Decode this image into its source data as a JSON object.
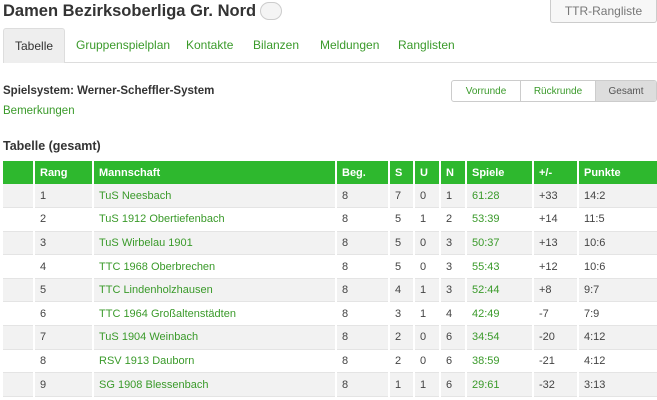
{
  "header": {
    "title": "Damen Bezirksoberliga Gr. Nord",
    "ttr_button": "TTR-Rangliste"
  },
  "tabs": [
    {
      "label": "Tabelle",
      "active": true
    },
    {
      "label": "Gruppenspielplan",
      "active": false
    },
    {
      "label": "Kontakte",
      "active": false
    },
    {
      "label": "Bilanzen",
      "active": false
    },
    {
      "label": "Meldungen",
      "active": false
    },
    {
      "label": "Ranglisten",
      "active": false
    }
  ],
  "info": {
    "system": "Spielsystem: Werner-Scheffler-System",
    "remarks": "Bemerkungen"
  },
  "round_selector": {
    "options": [
      "Vorrunde",
      "Rückrunde",
      "Gesamt"
    ],
    "selected": "Gesamt"
  },
  "table": {
    "heading": "Tabelle (gesamt)",
    "columns": [
      "",
      "Rang",
      "Mannschaft",
      "Beg.",
      "S",
      "U",
      "N",
      "Spiele",
      "+/-",
      "Punkte"
    ],
    "rows": [
      {
        "rang": "1",
        "team": "TuS Neesbach",
        "beg": "8",
        "s": "7",
        "u": "0",
        "n": "1",
        "spiele": "61:28",
        "diff": "+33",
        "punkte": "14:2"
      },
      {
        "rang": "2",
        "team": "TuS 1912 Obertiefenbach",
        "beg": "8",
        "s": "5",
        "u": "1",
        "n": "2",
        "spiele": "53:39",
        "diff": "+14",
        "punkte": "11:5"
      },
      {
        "rang": "3",
        "team": "TuS Wirbelau 1901",
        "beg": "8",
        "s": "5",
        "u": "0",
        "n": "3",
        "spiele": "50:37",
        "diff": "+13",
        "punkte": "10:6"
      },
      {
        "rang": "4",
        "team": "TTC 1968 Oberbrechen",
        "beg": "8",
        "s": "5",
        "u": "0",
        "n": "3",
        "spiele": "55:43",
        "diff": "+12",
        "punkte": "10:6"
      },
      {
        "rang": "5",
        "team": "TTC Lindenholzhausen",
        "beg": "8",
        "s": "4",
        "u": "1",
        "n": "3",
        "spiele": "52:44",
        "diff": "+8",
        "punkte": "9:7"
      },
      {
        "rang": "6",
        "team": "TTC 1964 Großaltenstädten",
        "beg": "8",
        "s": "3",
        "u": "1",
        "n": "4",
        "spiele": "42:49",
        "diff": "-7",
        "punkte": "7:9"
      },
      {
        "rang": "7",
        "team": "TuS 1904 Weinbach",
        "beg": "8",
        "s": "2",
        "u": "0",
        "n": "6",
        "spiele": "34:54",
        "diff": "-20",
        "punkte": "4:12"
      },
      {
        "rang": "8",
        "team": "RSV 1913 Dauborn",
        "beg": "8",
        "s": "2",
        "u": "0",
        "n": "6",
        "spiele": "38:59",
        "diff": "-21",
        "punkte": "4:12"
      },
      {
        "rang": "9",
        "team": "SG 1908 Blessenbach",
        "beg": "8",
        "s": "1",
        "u": "1",
        "n": "6",
        "spiele": "29:61",
        "diff": "-32",
        "punkte": "3:13"
      }
    ]
  },
  "colors": {
    "accent_green": "#2eb82e",
    "link_green": "#3a9a2a"
  }
}
